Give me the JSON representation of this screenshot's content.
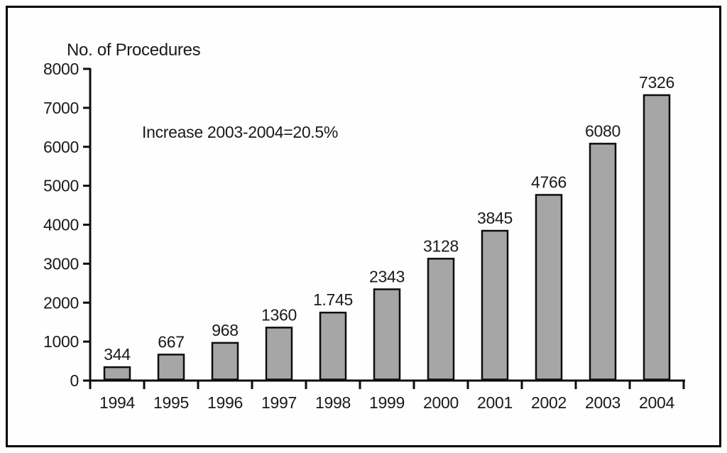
{
  "page": {
    "background_color": "#fefefe",
    "frame_color": "#000000"
  },
  "chart_data": {
    "type": "bar",
    "title": "No. of Procedures",
    "annotation": "Increase 2003-2004=20.5%",
    "xlabel": "",
    "ylabel": "No. of Procedures",
    "categories": [
      "1994",
      "1995",
      "1996",
      "1997",
      "1998",
      "1999",
      "2000",
      "2001",
      "2002",
      "2003",
      "2004"
    ],
    "values": [
      344,
      667,
      968,
      1360,
      1745,
      2343,
      3128,
      3845,
      4766,
      6080,
      7326
    ],
    "value_labels": [
      "344",
      "667",
      "968",
      "1360",
      "1.745",
      "2343",
      "3128",
      "3845",
      "4766",
      "6080",
      "7326"
    ],
    "y_ticks": [
      0,
      1000,
      2000,
      3000,
      4000,
      5000,
      6000,
      7000,
      8000
    ],
    "y_tick_labels": [
      "0",
      "1000",
      "2000",
      "3000",
      "4000",
      "5000",
      "6000",
      "7000",
      "8000"
    ],
    "ylim": [
      0,
      8000
    ],
    "grid": false,
    "legend": false,
    "bar_fill": "#a6a6a6",
    "bar_stroke": "#0d0d0d",
    "axis_color": "#0d0d0d",
    "text_color": "#1a1a1a"
  }
}
